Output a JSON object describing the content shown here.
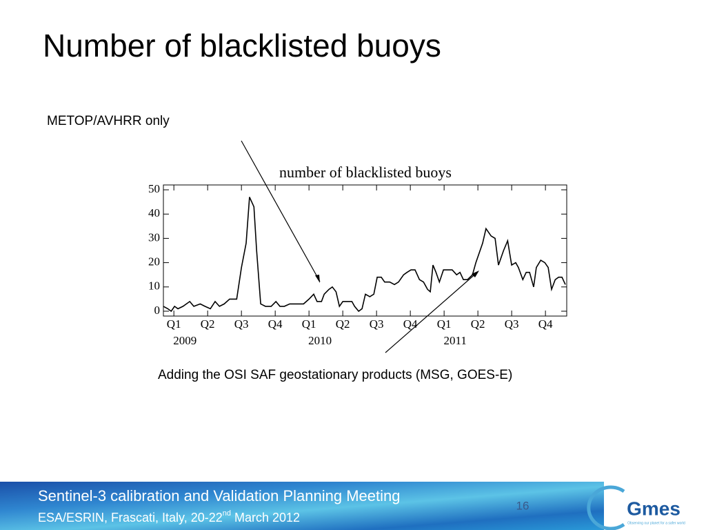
{
  "slide_title": "Number of blacklisted buoys",
  "annotation_top": "METOP/AVHRR only",
  "annotation_bottom": "Adding the OSI SAF geostationary products (MSG, GOES-E)",
  "chart_data": {
    "type": "line",
    "title": "number of blacklisted buoys",
    "color": "#000000",
    "x": [
      -0.31,
      -0.18,
      -0.08,
      0.02,
      0.12,
      0.27,
      0.47,
      0.59,
      0.78,
      0.92,
      1.08,
      1.22,
      1.35,
      1.49,
      1.65,
      1.86,
      2.0,
      2.14,
      2.24,
      2.37,
      2.45,
      2.57,
      2.71,
      2.88,
      3.02,
      3.14,
      3.27,
      3.43,
      3.63,
      3.84,
      4.0,
      4.14,
      4.24,
      4.37,
      4.45,
      4.59,
      4.69,
      4.8,
      4.9,
      5.0,
      5.16,
      5.27,
      5.35,
      5.47,
      5.57,
      5.67,
      5.8,
      5.92,
      6.02,
      6.14,
      6.24,
      6.39,
      6.53,
      6.65,
      6.8,
      6.9,
      7.02,
      7.14,
      7.27,
      7.39,
      7.51,
      7.59,
      7.67,
      7.76,
      7.86,
      7.98,
      8.12,
      8.24,
      8.37,
      8.47,
      8.57,
      8.69,
      8.84,
      8.94,
      9.04,
      9.14,
      9.24,
      9.39,
      9.51,
      9.61,
      9.76,
      9.88,
      10.0,
      10.12,
      10.2,
      10.33,
      10.43,
      10.53,
      10.65,
      10.73,
      10.86,
      10.98,
      11.08,
      11.18,
      11.29,
      11.39,
      11.49,
      11.59
    ],
    "values": [
      2,
      1,
      0,
      2,
      1,
      2,
      4,
      2,
      3,
      2,
      1,
      4,
      2,
      3,
      5,
      5,
      18,
      28,
      47,
      43,
      25,
      3,
      2,
      2,
      4,
      2,
      2,
      3,
      3,
      3,
      5,
      7,
      4,
      4,
      7,
      9,
      10,
      8,
      2,
      4,
      4,
      4,
      2,
      0,
      1,
      7,
      6,
      7,
      14,
      14,
      12,
      12,
      11,
      12,
      15,
      16,
      17,
      17,
      13,
      12,
      9,
      8,
      19,
      16,
      12,
      17,
      17,
      17,
      15,
      16,
      13,
      13,
      15,
      20,
      24,
      28,
      34,
      31,
      30,
      19,
      25,
      29,
      19,
      20,
      18,
      13,
      16,
      16,
      10,
      18,
      21,
      20,
      18,
      9,
      13,
      14,
      14,
      11
    ],
    "xlim": [
      -0.31,
      11.63
    ],
    "ylim": [
      -2,
      52
    ],
    "xticks": [
      {
        "value": 0,
        "label": "Q1"
      },
      {
        "value": 1,
        "label": "Q2"
      },
      {
        "value": 2,
        "label": "Q3"
      },
      {
        "value": 3,
        "label": "Q4"
      },
      {
        "value": 4,
        "label": "Q1"
      },
      {
        "value": 5,
        "label": "Q2"
      },
      {
        "value": 6,
        "label": "Q3"
      },
      {
        "value": 7,
        "label": "Q4"
      },
      {
        "value": 8,
        "label": "Q1"
      },
      {
        "value": 9,
        "label": "Q2"
      },
      {
        "value": 10,
        "label": "Q3"
      },
      {
        "value": 11,
        "label": "Q4"
      }
    ],
    "year_labels": [
      {
        "value": 0,
        "label": "2009"
      },
      {
        "value": 4,
        "label": "2010"
      },
      {
        "value": 8,
        "label": "2011"
      }
    ],
    "yticks": [
      0,
      10,
      20,
      30,
      40,
      50
    ]
  },
  "footer": {
    "line1": "Sentinel-3 calibration and Validation Planning Meeting",
    "line2_start": "ESA/ESRIN, Frascati, Italy, 20-22",
    "line2_sup": "nd",
    "line2_end": " March 2012",
    "page": "16",
    "logo": "Gmes",
    "logo_tagline": "Observing our planet for a safer world"
  }
}
